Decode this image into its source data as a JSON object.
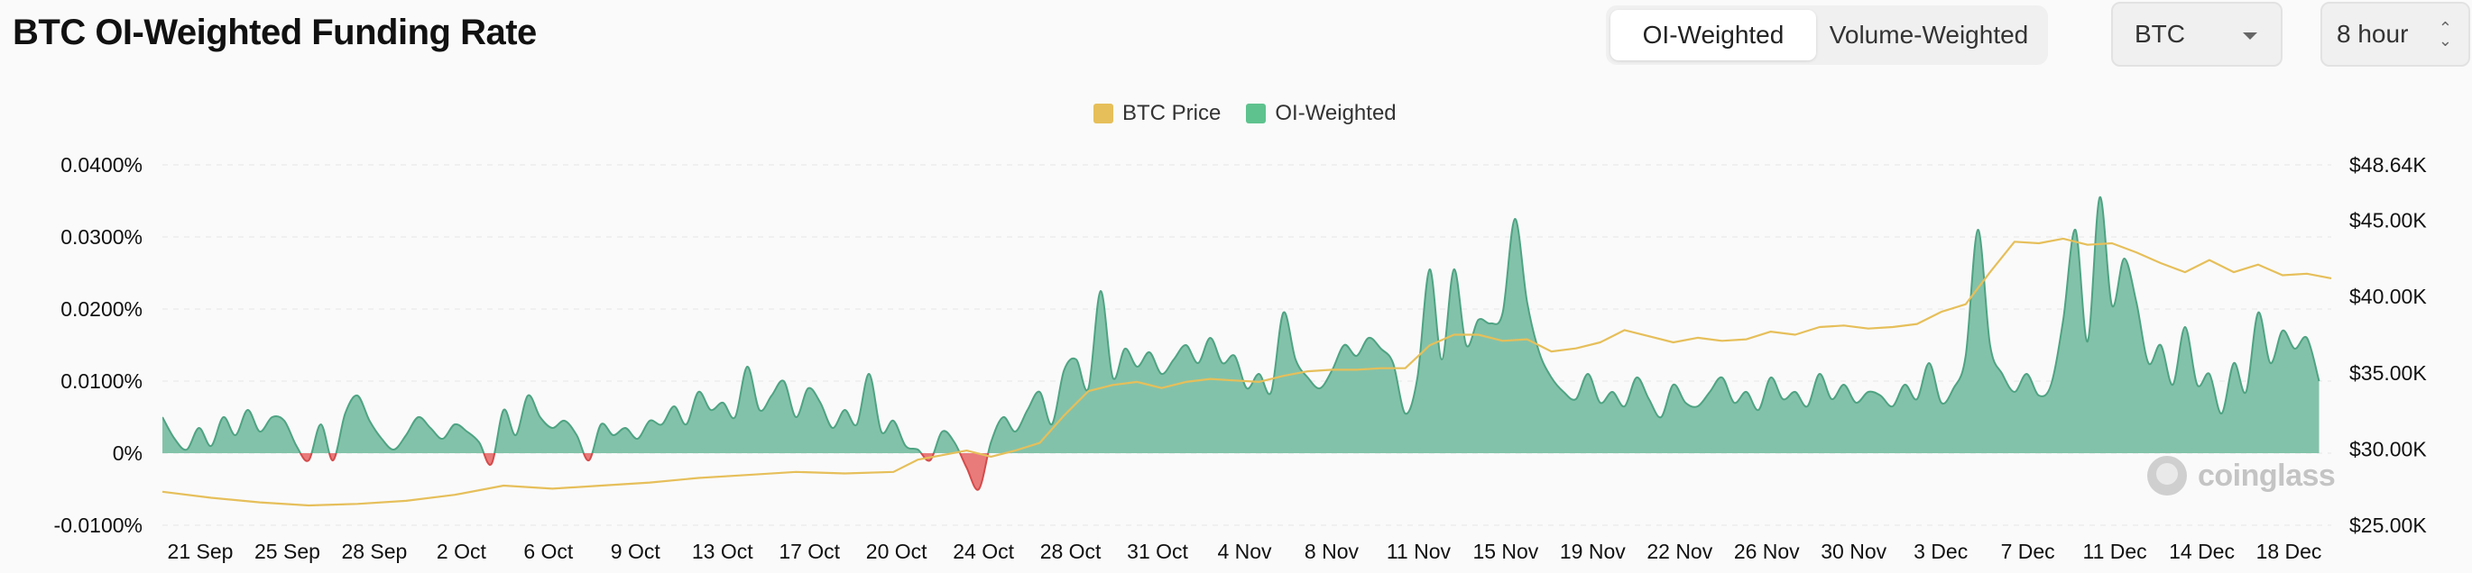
{
  "header": {
    "title": "BTC OI-Weighted Funding Rate",
    "tabs": [
      {
        "label": "OI-Weighted",
        "active": true
      },
      {
        "label": "Volume-Weighted",
        "active": false
      }
    ],
    "coin_select": "BTC",
    "interval_select": "8 hour"
  },
  "colors": {
    "price_line": "#e6bf5a",
    "positive_area": "#83c2aa",
    "positive_line": "#4ea383",
    "negative_area": "#e97b7b",
    "negative_line": "#d44b4b",
    "grid": "#ececec"
  },
  "watermark": {
    "text": "coinglass",
    "icon": "coinglass-logo-icon"
  },
  "chart_data": {
    "type": "area",
    "legend": [
      "BTC Price",
      "OI-Weighted"
    ],
    "legend_placement": "top-center",
    "grid": true,
    "y_left": {
      "ticks": [
        "0.0400%",
        "0.0300%",
        "0.0200%",
        "0.0100%",
        "0%",
        "-0.0100%"
      ],
      "values": [
        0.04,
        0.03,
        0.02,
        0.01,
        0,
        -0.01
      ],
      "range": [
        -0.01,
        0.04
      ]
    },
    "y_right": {
      "ticks": [
        "$48.64K",
        "$45.00K",
        "$40.00K",
        "$35.00K",
        "$30.00K",
        "$25.00K"
      ],
      "values": [
        48.64,
        45,
        40,
        35,
        30,
        25
      ],
      "range": [
        25,
        48.64
      ]
    },
    "x_ticks": [
      "21 Sep",
      "25 Sep",
      "28 Sep",
      "2 Oct",
      "6 Oct",
      "9 Oct",
      "13 Oct",
      "17 Oct",
      "20 Oct",
      "24 Oct",
      "28 Oct",
      "31 Oct",
      "4 Nov",
      "8 Nov",
      "11 Nov",
      "15 Nov",
      "19 Nov",
      "22 Nov",
      "26 Nov",
      "30 Nov",
      "3 Dec",
      "7 Dec",
      "11 Dec",
      "14 Dec",
      "18 Dec"
    ],
    "x_range_days": [
      0,
      89
    ],
    "series": [
      {
        "name": "OI-Weighted",
        "axis": "left",
        "points": [
          [
            0,
            0.005
          ],
          [
            0.5,
            0.002
          ],
          [
            1,
            0.0005
          ],
          [
            1.5,
            0.0035
          ],
          [
            2,
            0.001
          ],
          [
            2.5,
            0.005
          ],
          [
            3,
            0.0025
          ],
          [
            3.5,
            0.006
          ],
          [
            4,
            0.003
          ],
          [
            4.5,
            0.005
          ],
          [
            5,
            0.0045
          ],
          [
            5.5,
            0.001
          ],
          [
            6,
            -0.001
          ],
          [
            6.5,
            0.004
          ],
          [
            7,
            -0.001
          ],
          [
            7.5,
            0.0055
          ],
          [
            8,
            0.008
          ],
          [
            8.5,
            0.0045
          ],
          [
            9,
            0.002
          ],
          [
            9.5,
            0.0005
          ],
          [
            10,
            0.0025
          ],
          [
            10.5,
            0.005
          ],
          [
            11,
            0.0035
          ],
          [
            11.5,
            0.002
          ],
          [
            12,
            0.004
          ],
          [
            12.5,
            0.003
          ],
          [
            13,
            0.0015
          ],
          [
            13.5,
            -0.0015
          ],
          [
            14,
            0.006
          ],
          [
            14.5,
            0.0025
          ],
          [
            15,
            0.008
          ],
          [
            15.5,
            0.005
          ],
          [
            16,
            0.0035
          ],
          [
            16.5,
            0.0045
          ],
          [
            17,
            0.0025
          ],
          [
            17.5,
            -0.001
          ],
          [
            18,
            0.004
          ],
          [
            18.5,
            0.0025
          ],
          [
            19,
            0.0035
          ],
          [
            19.5,
            0.002
          ],
          [
            20,
            0.0045
          ],
          [
            20.5,
            0.004
          ],
          [
            21,
            0.0065
          ],
          [
            21.5,
            0.004
          ],
          [
            22,
            0.0085
          ],
          [
            22.5,
            0.006
          ],
          [
            23,
            0.007
          ],
          [
            23.5,
            0.005
          ],
          [
            24,
            0.012
          ],
          [
            24.5,
            0.006
          ],
          [
            25,
            0.008
          ],
          [
            25.5,
            0.01
          ],
          [
            26,
            0.005
          ],
          [
            26.5,
            0.009
          ],
          [
            27,
            0.007
          ],
          [
            27.5,
            0.0035
          ],
          [
            28,
            0.006
          ],
          [
            28.5,
            0.004
          ],
          [
            29,
            0.011
          ],
          [
            29.5,
            0.003
          ],
          [
            30,
            0.0045
          ],
          [
            30.5,
            0.001
          ],
          [
            31,
            0.0005
          ],
          [
            31.5,
            -0.001
          ],
          [
            32,
            0.003
          ],
          [
            32.5,
            0.0015
          ],
          [
            33,
            -0.002
          ],
          [
            33.5,
            -0.005
          ],
          [
            34,
            0.0015
          ],
          [
            34.5,
            0.005
          ],
          [
            35,
            0.003
          ],
          [
            35.5,
            0.006
          ],
          [
            36,
            0.0085
          ],
          [
            36.5,
            0.004
          ],
          [
            37,
            0.0115
          ],
          [
            37.5,
            0.013
          ],
          [
            38,
            0.009
          ],
          [
            38.5,
            0.0225
          ],
          [
            39,
            0.0105
          ],
          [
            39.5,
            0.0145
          ],
          [
            40,
            0.012
          ],
          [
            40.5,
            0.014
          ],
          [
            41,
            0.011
          ],
          [
            41.5,
            0.013
          ],
          [
            42,
            0.015
          ],
          [
            42.5,
            0.0125
          ],
          [
            43,
            0.016
          ],
          [
            43.5,
            0.0125
          ],
          [
            44,
            0.0135
          ],
          [
            44.5,
            0.009
          ],
          [
            45,
            0.011
          ],
          [
            45.5,
            0.0085
          ],
          [
            46,
            0.0195
          ],
          [
            46.5,
            0.013
          ],
          [
            47,
            0.0105
          ],
          [
            47.5,
            0.009
          ],
          [
            48,
            0.0115
          ],
          [
            48.5,
            0.015
          ],
          [
            49,
            0.0135
          ],
          [
            49.5,
            0.016
          ],
          [
            50,
            0.0145
          ],
          [
            50.5,
            0.0125
          ],
          [
            51,
            0.0055
          ],
          [
            51.5,
            0.0105
          ],
          [
            52,
            0.0255
          ],
          [
            52.5,
            0.013
          ],
          [
            53,
            0.0255
          ],
          [
            53.5,
            0.015
          ],
          [
            54,
            0.0185
          ],
          [
            54.5,
            0.018
          ],
          [
            55,
            0.0195
          ],
          [
            55.5,
            0.0325
          ],
          [
            56,
            0.021
          ],
          [
            56.5,
            0.014
          ],
          [
            57,
            0.0105
          ],
          [
            57.5,
            0.0085
          ],
          [
            58,
            0.0075
          ],
          [
            58.5,
            0.011
          ],
          [
            59,
            0.007
          ],
          [
            59.5,
            0.0085
          ],
          [
            60,
            0.0065
          ],
          [
            60.5,
            0.0105
          ],
          [
            61,
            0.0075
          ],
          [
            61.5,
            0.005
          ],
          [
            62,
            0.0095
          ],
          [
            62.5,
            0.007
          ],
          [
            63,
            0.0065
          ],
          [
            63.5,
            0.0085
          ],
          [
            64,
            0.0105
          ],
          [
            64.5,
            0.007
          ],
          [
            65,
            0.0085
          ],
          [
            65.5,
            0.006
          ],
          [
            66,
            0.0105
          ],
          [
            66.5,
            0.0075
          ],
          [
            67,
            0.0085
          ],
          [
            67.5,
            0.0065
          ],
          [
            68,
            0.011
          ],
          [
            68.5,
            0.0075
          ],
          [
            69,
            0.0095
          ],
          [
            69.5,
            0.007
          ],
          [
            70,
            0.0085
          ],
          [
            70.5,
            0.008
          ],
          [
            71,
            0.0065
          ],
          [
            71.5,
            0.0095
          ],
          [
            72,
            0.0075
          ],
          [
            72.5,
            0.0125
          ],
          [
            73,
            0.007
          ],
          [
            73.5,
            0.009
          ],
          [
            74,
            0.0135
          ],
          [
            74.5,
            0.031
          ],
          [
            75,
            0.015
          ],
          [
            75.5,
            0.011
          ],
          [
            76,
            0.0085
          ],
          [
            76.5,
            0.011
          ],
          [
            77,
            0.008
          ],
          [
            77.5,
            0.0095
          ],
          [
            78,
            0.0185
          ],
          [
            78.5,
            0.031
          ],
          [
            79,
            0.0155
          ],
          [
            79.5,
            0.0355
          ],
          [
            80,
            0.0205
          ],
          [
            80.5,
            0.027
          ],
          [
            81,
            0.021
          ],
          [
            81.5,
            0.0125
          ],
          [
            82,
            0.015
          ],
          [
            82.5,
            0.0095
          ],
          [
            83,
            0.0175
          ],
          [
            83.5,
            0.0095
          ],
          [
            84,
            0.011
          ],
          [
            84.5,
            0.0055
          ],
          [
            85,
            0.0125
          ],
          [
            85.5,
            0.0085
          ],
          [
            86,
            0.0195
          ],
          [
            86.5,
            0.0125
          ],
          [
            87,
            0.017
          ],
          [
            87.5,
            0.0145
          ],
          [
            88,
            0.016
          ],
          [
            88.5,
            0.01
          ]
        ]
      },
      {
        "name": "BTC Price",
        "axis": "right",
        "points": [
          [
            0,
            27.2
          ],
          [
            2,
            26.8
          ],
          [
            4,
            26.5
          ],
          [
            6,
            26.3
          ],
          [
            8,
            26.4
          ],
          [
            10,
            26.6
          ],
          [
            12,
            27.0
          ],
          [
            14,
            27.6
          ],
          [
            16,
            27.4
          ],
          [
            18,
            27.6
          ],
          [
            20,
            27.8
          ],
          [
            22,
            28.1
          ],
          [
            24,
            28.3
          ],
          [
            26,
            28.5
          ],
          [
            28,
            28.4
          ],
          [
            30,
            28.5
          ],
          [
            31,
            29.3
          ],
          [
            32,
            29.6
          ],
          [
            33,
            29.9
          ],
          [
            34,
            29.5
          ],
          [
            35,
            29.9
          ],
          [
            36,
            30.4
          ],
          [
            37,
            32.2
          ],
          [
            38,
            33.8
          ],
          [
            39,
            34.2
          ],
          [
            40,
            34.4
          ],
          [
            41,
            34.0
          ],
          [
            42,
            34.4
          ],
          [
            43,
            34.6
          ],
          [
            44,
            34.5
          ],
          [
            45,
            34.4
          ],
          [
            46,
            34.8
          ],
          [
            47,
            35.1
          ],
          [
            48,
            35.2
          ],
          [
            49,
            35.2
          ],
          [
            50,
            35.3
          ],
          [
            51,
            35.3
          ],
          [
            52,
            36.8
          ],
          [
            53,
            37.5
          ],
          [
            54,
            37.5
          ],
          [
            55,
            37.1
          ],
          [
            56,
            37.2
          ],
          [
            57,
            36.4
          ],
          [
            58,
            36.6
          ],
          [
            59,
            37.0
          ],
          [
            60,
            37.8
          ],
          [
            61,
            37.4
          ],
          [
            62,
            37.0
          ],
          [
            63,
            37.3
          ],
          [
            64,
            37.1
          ],
          [
            65,
            37.2
          ],
          [
            66,
            37.7
          ],
          [
            67,
            37.5
          ],
          [
            68,
            38.0
          ],
          [
            69,
            38.1
          ],
          [
            70,
            37.9
          ],
          [
            71,
            38.0
          ],
          [
            72,
            38.2
          ],
          [
            73,
            39.0
          ],
          [
            74,
            39.5
          ],
          [
            75,
            41.6
          ],
          [
            76,
            43.6
          ],
          [
            77,
            43.5
          ],
          [
            78,
            43.8
          ],
          [
            79,
            43.4
          ],
          [
            80,
            43.5
          ],
          [
            81,
            42.9
          ],
          [
            82,
            42.2
          ],
          [
            83,
            41.6
          ],
          [
            84,
            42.4
          ],
          [
            85,
            41.6
          ],
          [
            86,
            42.1
          ],
          [
            87,
            41.4
          ],
          [
            88,
            41.5
          ],
          [
            89,
            41.2
          ]
        ]
      }
    ]
  }
}
